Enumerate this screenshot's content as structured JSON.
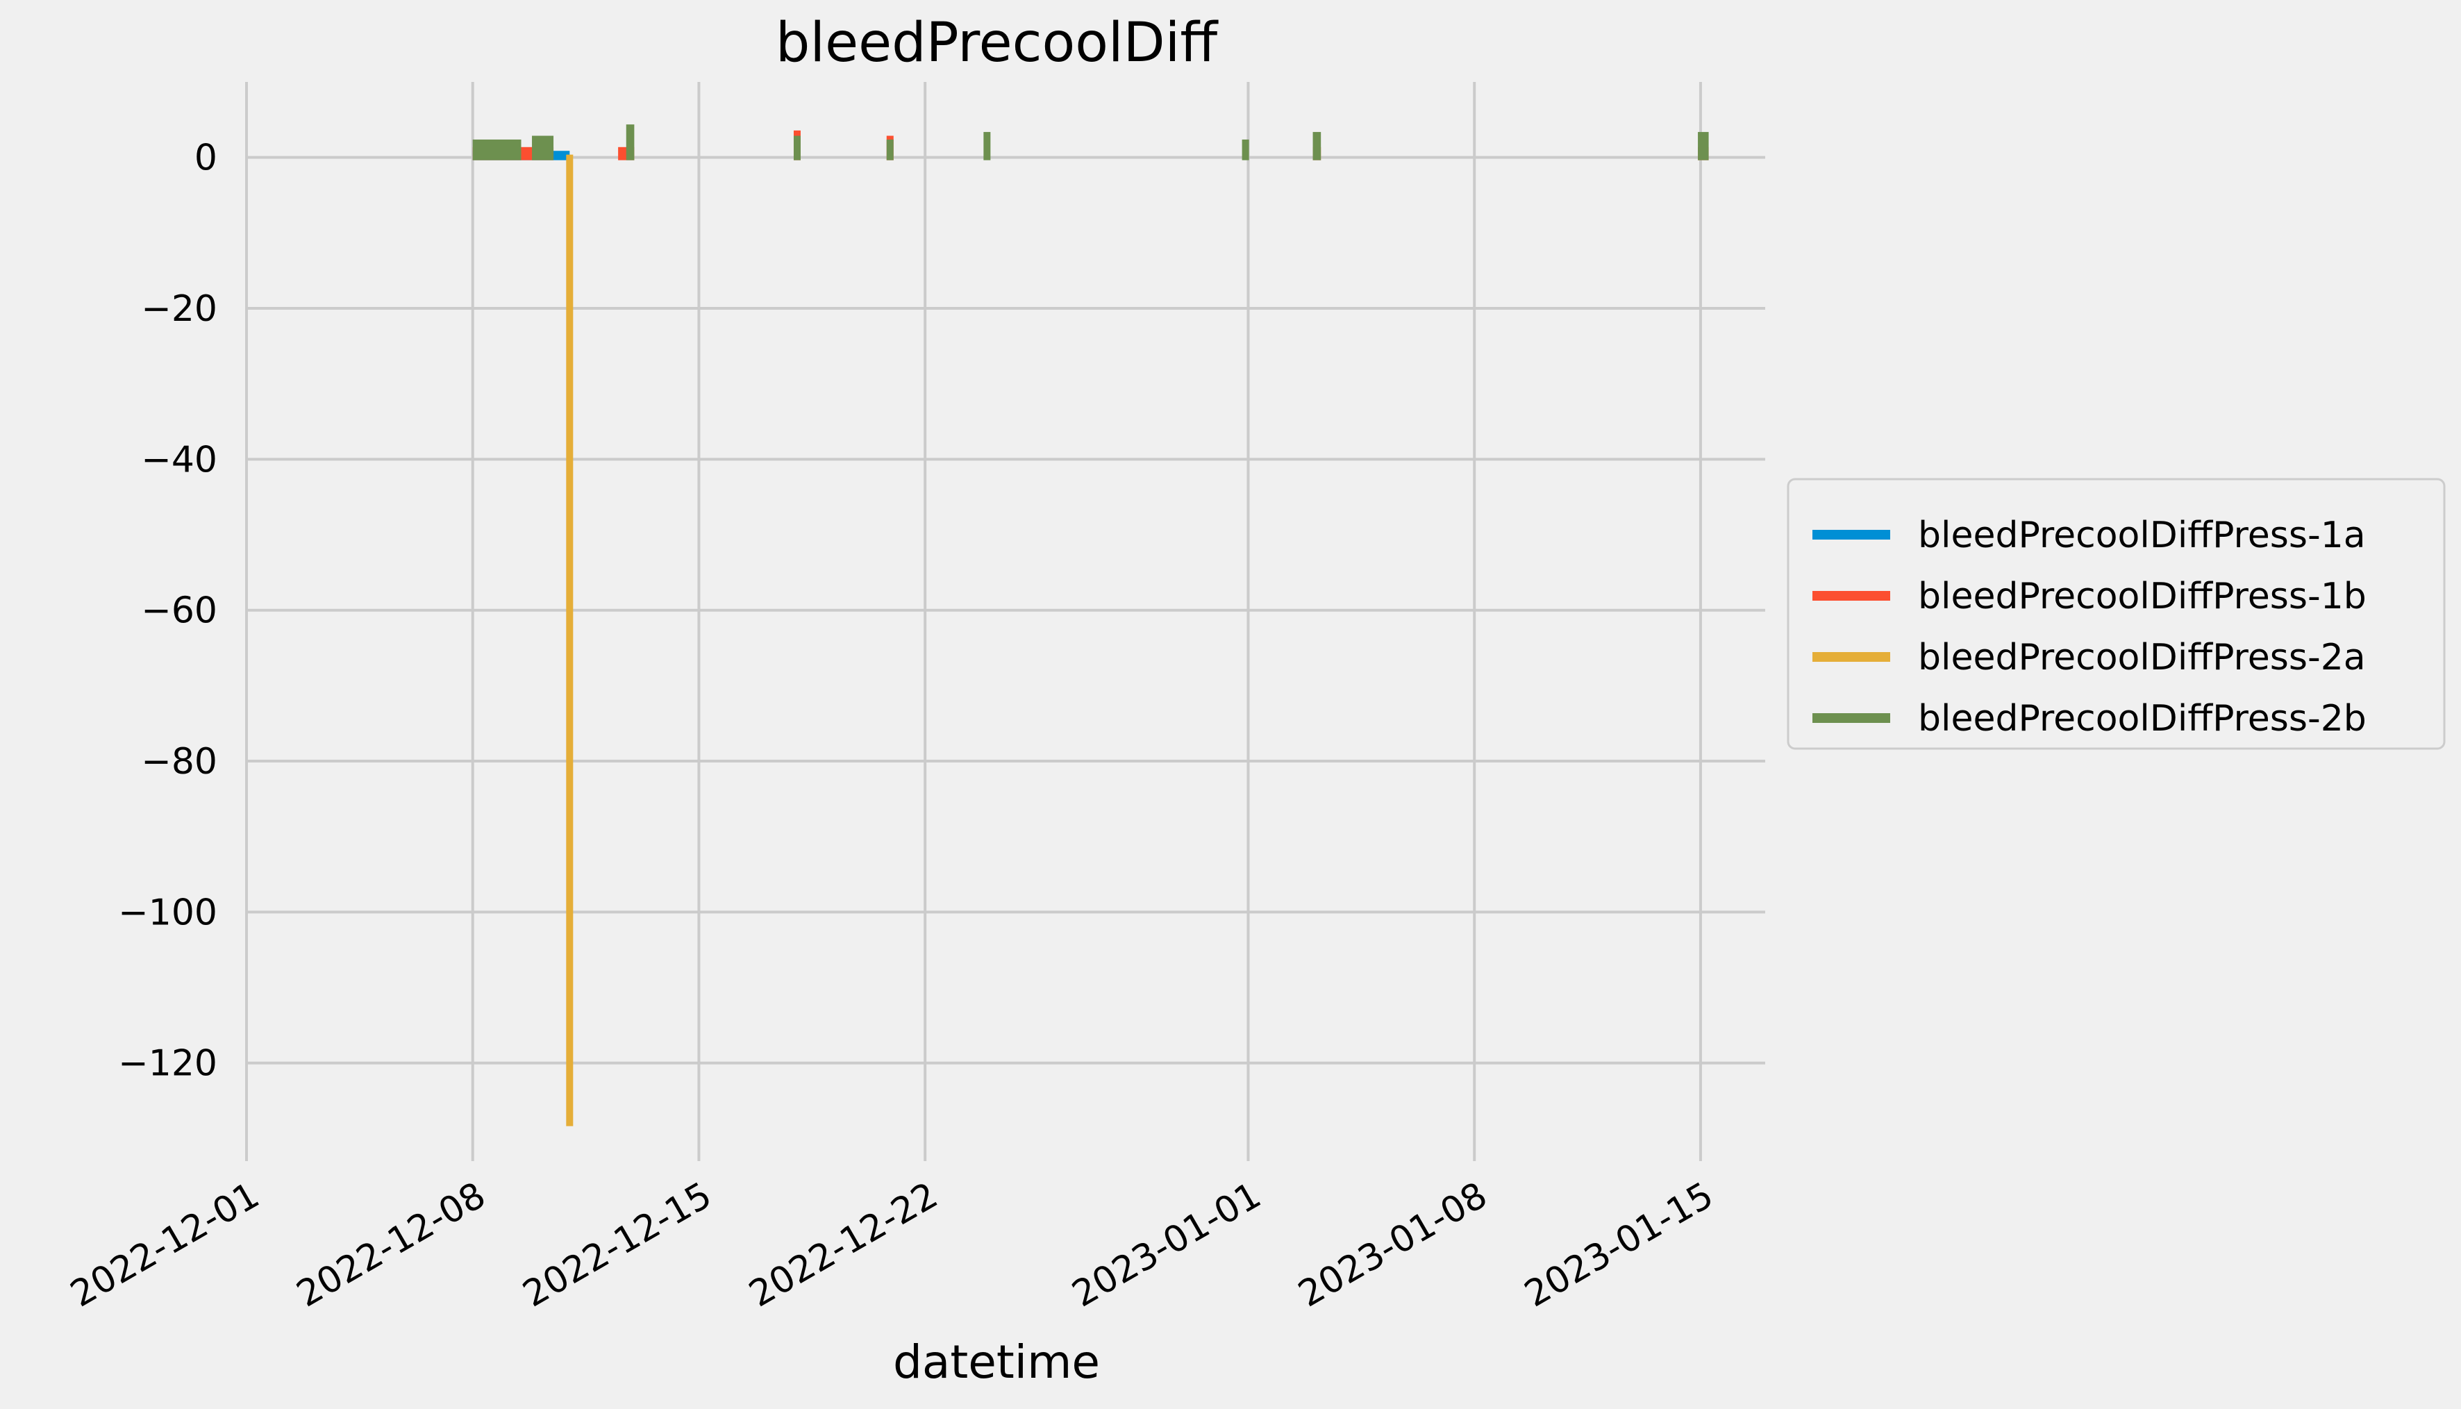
{
  "chart_data": {
    "type": "line",
    "title": "bleedPrecoolDiff",
    "xlabel": "datetime",
    "ylabel": "",
    "xlim": [
      "2022-12-01",
      "2023-01-17"
    ],
    "ylim": [
      -133,
      10
    ],
    "xticks": [
      "2022-12-01",
      "2022-12-08",
      "2022-12-15",
      "2022-12-22",
      "2023-01-01",
      "2023-01-08",
      "2023-01-15"
    ],
    "yticks": [
      0,
      -20,
      -40,
      -60,
      -80,
      -100,
      -120
    ],
    "ytick_labels": [
      "0",
      "−20",
      "−40",
      "−60",
      "−80",
      "−100",
      "−120"
    ],
    "grid": true,
    "legend_position": "right",
    "series": [
      {
        "name": "bleedPrecoolDiffPress-1a",
        "color": "#008fd5",
        "bursts": [
          {
            "start": "2022-12-08T00:00",
            "end": "2022-12-11T00:00",
            "min": 0,
            "max": 0.5
          }
        ]
      },
      {
        "name": "bleedPrecoolDiffPress-1b",
        "color": "#fc4f30",
        "bursts": [
          {
            "start": "2022-12-08T00:00",
            "end": "2022-12-10T12:00",
            "min": 0,
            "max": 1
          },
          {
            "start": "2022-12-12T12:00",
            "end": "2022-12-13T00:00",
            "min": 0,
            "max": 1
          },
          {
            "start": "2022-12-18T00:00",
            "end": "2022-12-18T02:00",
            "min": 0,
            "max": 3.2
          },
          {
            "start": "2022-12-20T20:00",
            "end": "2022-12-21T00:00",
            "min": 0,
            "max": 2.5
          },
          {
            "start": "2023-01-03T00:00",
            "end": "2023-01-03T06:00",
            "min": 0,
            "max": 1
          },
          {
            "start": "2023-01-14T22:00",
            "end": "2023-01-15T06:00",
            "min": 0,
            "max": 1
          }
        ]
      },
      {
        "name": "bleedPrecoolDiffPress-2a",
        "color": "#e5ae38",
        "bursts": [
          {
            "start": "2022-12-10T22:00",
            "end": "2022-12-11T02:00",
            "min": -128,
            "max": 0
          }
        ]
      },
      {
        "name": "bleedPrecoolDiffPress-2b",
        "color": "#6d904f",
        "bursts": [
          {
            "start": "2022-12-08T00:00",
            "end": "2022-12-09T12:00",
            "min": 0,
            "max": 2
          },
          {
            "start": "2022-12-09T20:00",
            "end": "2022-12-10T12:00",
            "min": 0,
            "max": 2.5
          },
          {
            "start": "2022-12-12T18:00",
            "end": "2022-12-13T00:00",
            "min": 0,
            "max": 4
          },
          {
            "start": "2022-12-18T00:00",
            "end": "2022-12-18T02:00",
            "min": 0,
            "max": 2.5
          },
          {
            "start": "2022-12-20T20:00",
            "end": "2022-12-21T00:00",
            "min": 0,
            "max": 2
          },
          {
            "start": "2022-12-23T20:00",
            "end": "2022-12-24T00:00",
            "min": 0,
            "max": 3
          },
          {
            "start": "2022-12-31T20:00",
            "end": "2023-01-01T00:00",
            "min": 0,
            "max": 2
          },
          {
            "start": "2023-01-03T00:00",
            "end": "2023-01-03T06:00",
            "min": 0,
            "max": 3
          },
          {
            "start": "2023-01-14T22:00",
            "end": "2023-01-15T06:00",
            "min": 0,
            "max": 3
          }
        ]
      }
    ]
  }
}
